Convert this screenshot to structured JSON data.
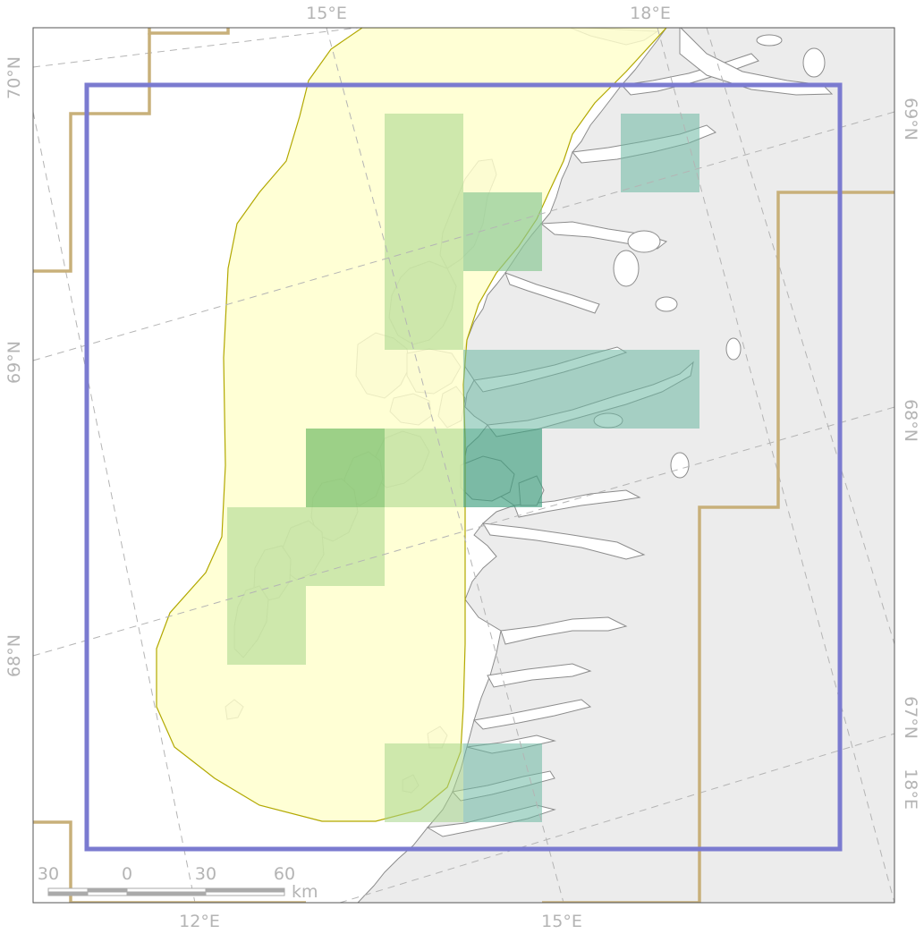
{
  "map": {
    "graticule_labels": {
      "top": [
        "15°E",
        "18°E"
      ],
      "bottom": [
        "12°E",
        "15°E"
      ],
      "left": [
        "70°N",
        "69°N",
        "68°N"
      ],
      "right": [
        "69°N",
        "68°N",
        "67°N",
        "18°E"
      ]
    },
    "scale_bar": {
      "labels": [
        "30",
        "0",
        "30",
        "60"
      ],
      "unit": "km"
    },
    "colors": {
      "land": "#ececec",
      "sea": "#ffffff",
      "coastline": "#8c8c8c",
      "coverage_area": "#ffffcc",
      "coverage_outline": "#b2a800",
      "study_bbox": "#7b7bd0",
      "border": "#c8b07a",
      "tile_green": "#a5d58a",
      "tile_teal": "#6bb8a3",
      "graticule": "#b4b4b4"
    },
    "layers": [
      "graticule",
      "land",
      "coverage-area",
      "tiles",
      "study-area-box",
      "region-border",
      "scale-bar"
    ]
  }
}
